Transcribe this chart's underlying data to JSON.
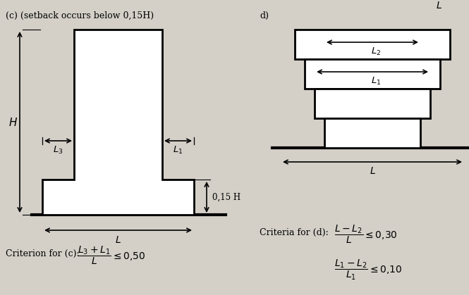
{
  "bg_color": "#d4d0c8",
  "title_c": "(c) (setback occurs below 0,15H)",
  "title_d": "d)",
  "criterion_c": "Criterion for (c):",
  "criterion_d": "Criteria for (d):"
}
